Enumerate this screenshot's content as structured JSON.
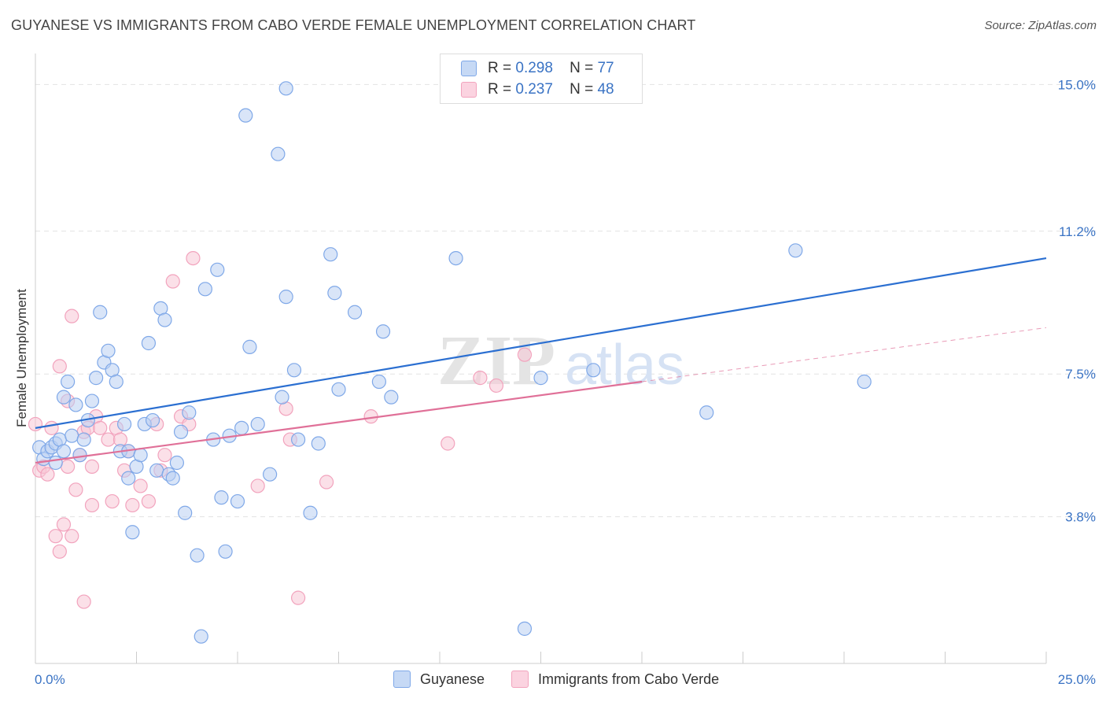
{
  "title": "GUYANESE VS IMMIGRANTS FROM CABO VERDE FEMALE UNEMPLOYMENT CORRELATION CHART",
  "source": "Source: ZipAtlas.com",
  "watermark": {
    "zip": "ZIP",
    "atlas": "atlas"
  },
  "legend": {
    "r_label": "R =",
    "n_label": "N =",
    "rows": [
      {
        "r": "0.298",
        "n": "77",
        "color": "#7fa8e8"
      },
      {
        "r": "0.237",
        "n": "48",
        "color": "#f2a3bd"
      }
    ]
  },
  "chart_data": {
    "type": "scatter",
    "title": "GUYANESE VS IMMIGRANTS FROM CABO VERDE FEMALE UNEMPLOYMENT CORRELATION CHART",
    "xlabel": "",
    "ylabel": "Female Unemployment",
    "xlim": [
      0,
      25
    ],
    "ylim": [
      0,
      15.6
    ],
    "x_tick_labels": [
      "0.0%",
      "25.0%"
    ],
    "y_ticks": [
      3.8,
      7.5,
      11.2,
      15.0
    ],
    "y_tick_labels": [
      "3.8%",
      "7.5%",
      "11.2%",
      "15.0%"
    ],
    "grid": true,
    "legend_position": "top-center",
    "series": [
      {
        "name": "Guyanese",
        "color": "#7fa8e8",
        "line_color": "#2b6fd1",
        "trend": {
          "x": [
            0,
            25
          ],
          "y": [
            6.1,
            10.5
          ]
        },
        "points": [
          [
            0.1,
            5.6
          ],
          [
            0.2,
            5.3
          ],
          [
            0.3,
            5.5
          ],
          [
            0.4,
            5.6
          ],
          [
            0.5,
            5.7
          ],
          [
            0.5,
            5.2
          ],
          [
            0.6,
            5.8
          ],
          [
            0.7,
            5.5
          ],
          [
            0.7,
            6.9
          ],
          [
            0.8,
            7.3
          ],
          [
            0.9,
            5.9
          ],
          [
            1.0,
            6.7
          ],
          [
            1.1,
            5.4
          ],
          [
            1.2,
            5.8
          ],
          [
            1.3,
            6.3
          ],
          [
            1.4,
            6.8
          ],
          [
            1.5,
            7.4
          ],
          [
            1.6,
            9.1
          ],
          [
            1.7,
            7.8
          ],
          [
            1.8,
            8.1
          ],
          [
            1.9,
            7.6
          ],
          [
            2.0,
            7.3
          ],
          [
            2.1,
            5.5
          ],
          [
            2.2,
            6.2
          ],
          [
            2.3,
            5.5
          ],
          [
            2.3,
            4.8
          ],
          [
            2.4,
            3.4
          ],
          [
            2.5,
            5.1
          ],
          [
            2.6,
            5.4
          ],
          [
            2.7,
            6.2
          ],
          [
            2.8,
            8.3
          ],
          [
            2.9,
            6.3
          ],
          [
            3.0,
            5.0
          ],
          [
            3.1,
            9.2
          ],
          [
            3.2,
            8.9
          ],
          [
            3.3,
            4.9
          ],
          [
            3.4,
            4.8
          ],
          [
            3.5,
            5.2
          ],
          [
            3.6,
            6.0
          ],
          [
            3.7,
            3.9
          ],
          [
            3.8,
            6.5
          ],
          [
            4.0,
            2.8
          ],
          [
            4.1,
            0.7
          ],
          [
            4.2,
            9.7
          ],
          [
            4.4,
            5.8
          ],
          [
            4.5,
            10.2
          ],
          [
            4.6,
            4.3
          ],
          [
            4.7,
            2.9
          ],
          [
            4.8,
            5.9
          ],
          [
            5.0,
            4.2
          ],
          [
            5.1,
            6.1
          ],
          [
            5.2,
            14.2
          ],
          [
            5.3,
            8.2
          ],
          [
            5.5,
            6.2
          ],
          [
            5.8,
            4.9
          ],
          [
            6.0,
            13.2
          ],
          [
            6.1,
            6.9
          ],
          [
            6.2,
            9.5
          ],
          [
            6.4,
            7.6
          ],
          [
            6.5,
            5.8
          ],
          [
            6.8,
            3.9
          ],
          [
            7.0,
            5.7
          ],
          [
            7.3,
            10.6
          ],
          [
            7.4,
            9.6
          ],
          [
            7.5,
            7.1
          ],
          [
            7.9,
            9.1
          ],
          [
            8.5,
            7.3
          ],
          [
            8.6,
            8.6
          ],
          [
            8.8,
            6.9
          ],
          [
            10.4,
            10.5
          ],
          [
            12.1,
            0.9
          ],
          [
            12.5,
            7.4
          ],
          [
            13.8,
            7.6
          ],
          [
            16.6,
            6.5
          ],
          [
            18.8,
            10.7
          ],
          [
            20.5,
            7.3
          ],
          [
            6.2,
            14.9
          ]
        ]
      },
      {
        "name": "Immigrants from Cabo Verde",
        "color": "#f2a3bd",
        "line_color": "#e07098",
        "trend": {
          "x": [
            0,
            15
          ],
          "y": [
            5.2,
            7.3
          ]
        },
        "trend_ext": {
          "x": [
            15,
            25
          ],
          "y": [
            7.3,
            8.7
          ]
        },
        "points": [
          [
            0.0,
            6.2
          ],
          [
            0.1,
            5.0
          ],
          [
            0.2,
            5.1
          ],
          [
            0.3,
            4.9
          ],
          [
            0.4,
            6.1
          ],
          [
            0.5,
            3.3
          ],
          [
            0.6,
            2.9
          ],
          [
            0.6,
            7.7
          ],
          [
            0.7,
            3.6
          ],
          [
            0.8,
            5.1
          ],
          [
            0.8,
            6.8
          ],
          [
            0.9,
            3.3
          ],
          [
            0.9,
            9.0
          ],
          [
            1.0,
            4.5
          ],
          [
            1.1,
            5.4
          ],
          [
            1.2,
            1.6
          ],
          [
            1.2,
            6.0
          ],
          [
            1.3,
            6.1
          ],
          [
            1.4,
            5.1
          ],
          [
            1.4,
            4.1
          ],
          [
            1.5,
            6.4
          ],
          [
            1.6,
            6.1
          ],
          [
            1.8,
            5.8
          ],
          [
            1.9,
            4.2
          ],
          [
            2.0,
            6.1
          ],
          [
            2.1,
            5.8
          ],
          [
            2.2,
            5.0
          ],
          [
            2.3,
            5.5
          ],
          [
            2.4,
            4.1
          ],
          [
            2.6,
            4.6
          ],
          [
            2.8,
            4.2
          ],
          [
            3.0,
            6.2
          ],
          [
            3.1,
            5.0
          ],
          [
            3.2,
            5.4
          ],
          [
            3.4,
            9.9
          ],
          [
            3.6,
            6.4
          ],
          [
            3.8,
            6.2
          ],
          [
            3.9,
            10.5
          ],
          [
            5.5,
            4.6
          ],
          [
            6.2,
            6.6
          ],
          [
            6.3,
            5.8
          ],
          [
            6.5,
            1.7
          ],
          [
            7.2,
            4.7
          ],
          [
            8.3,
            6.4
          ],
          [
            10.2,
            5.7
          ],
          [
            11.4,
            7.2
          ],
          [
            12.1,
            8.0
          ],
          [
            11.0,
            7.4
          ]
        ]
      }
    ]
  }
}
